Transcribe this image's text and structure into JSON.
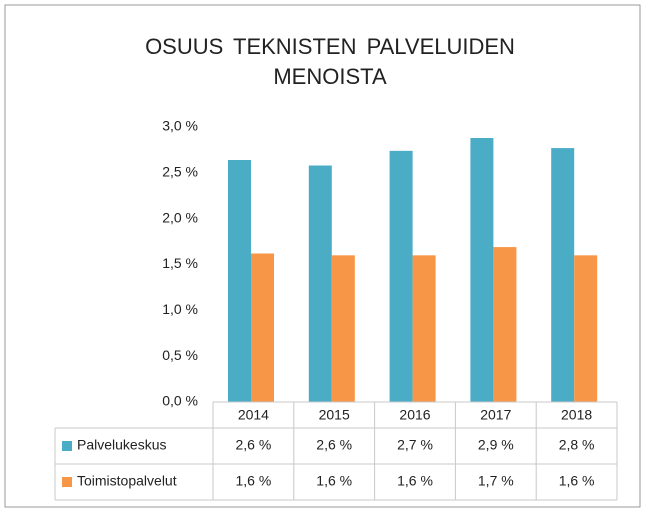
{
  "chart_data": {
    "type": "bar",
    "title": "OSUUS TEKNISTEN PALVELUIDEN MENOISTA",
    "categories": [
      "2014",
      "2015",
      "2016",
      "2017",
      "2018"
    ],
    "series": [
      {
        "name": "Palvelukeskus",
        "color": "#4bacc6",
        "values": [
          2.64,
          2.58,
          2.74,
          2.88,
          2.77
        ],
        "value_labels": [
          "2,6 %",
          "2,6 %",
          "2,7 %",
          "2,9 %",
          "2,8 %"
        ]
      },
      {
        "name": "Toimistopalvelut",
        "color": "#f79646",
        "values": [
          1.62,
          1.6,
          1.6,
          1.69,
          1.6
        ],
        "value_labels": [
          "1,6 %",
          "1,6 %",
          "1,6 %",
          "1,7 %",
          "1,6 %"
        ]
      }
    ],
    "ylim": [
      0,
      3
    ],
    "yticks": [
      {
        "value": 0,
        "label": "0,0 %"
      },
      {
        "value": 0.5,
        "label": "0,5 %"
      },
      {
        "value": 1,
        "label": "1,0 %"
      },
      {
        "value": 1.5,
        "label": "1,5 %"
      },
      {
        "value": 2,
        "label": "2,0 %"
      },
      {
        "value": 2.5,
        "label": "2,5 %"
      },
      {
        "value": 3,
        "label": "3,0 %"
      }
    ],
    "grid": false
  }
}
